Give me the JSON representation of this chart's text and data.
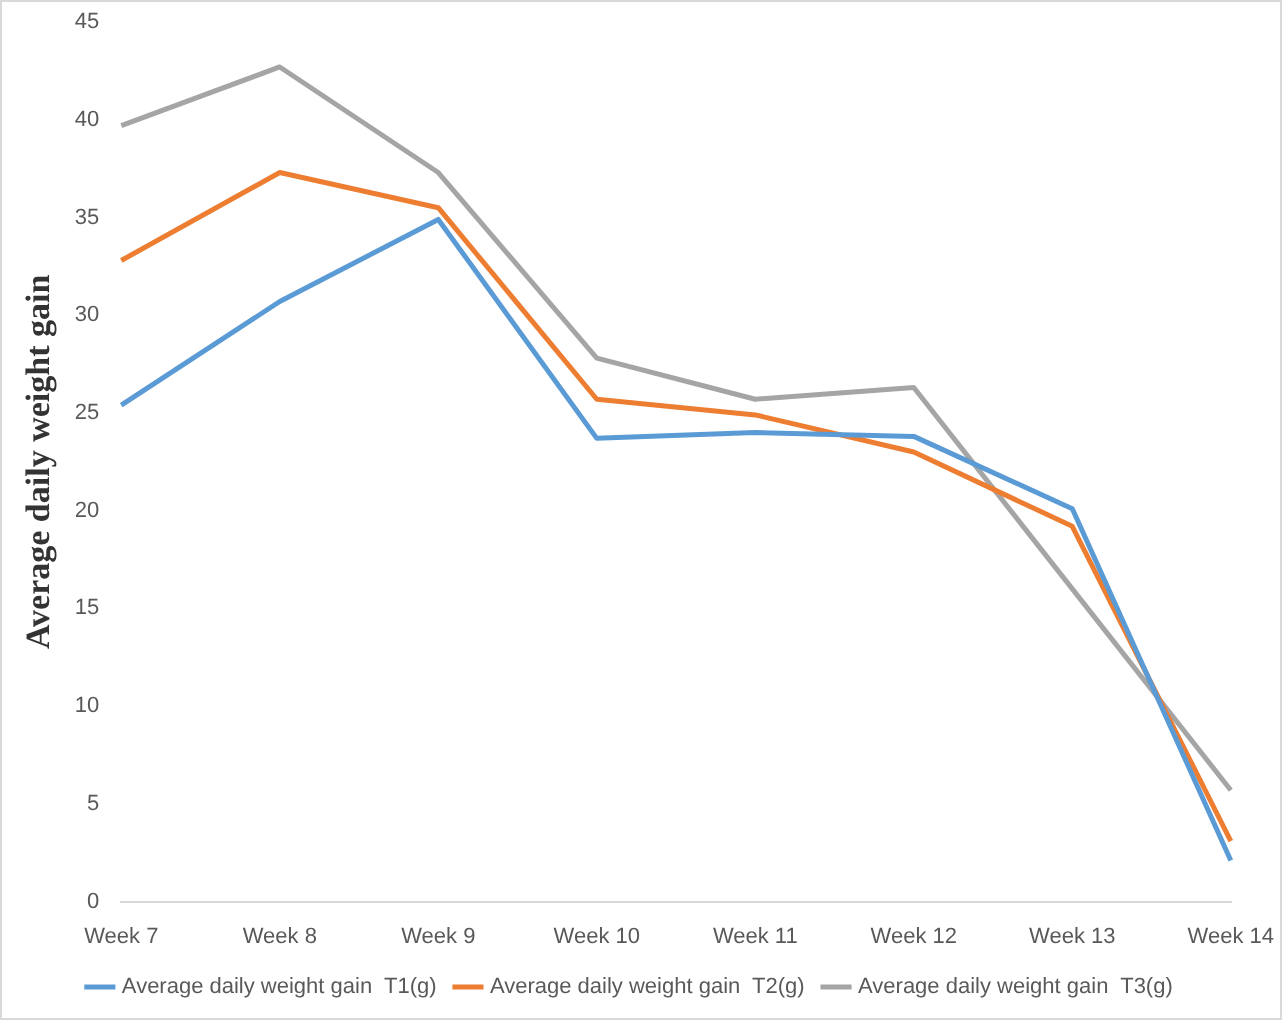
{
  "chart_data": {
    "type": "line",
    "ylabel": "Average daily weight gain",
    "categories": [
      "Week 7",
      "Week 8",
      "Week 9",
      "Week 10",
      "Week 11",
      "Week 12",
      "Week 13",
      "Week 14"
    ],
    "series": [
      {
        "name": "Average daily weight gain  T1(g)",
        "color": "#5b9bd5",
        "values": [
          25.4,
          30.7,
          34.9,
          23.7,
          24.0,
          23.8,
          20.1,
          2.1
        ]
      },
      {
        "name": "Average daily weight gain  T2(g)",
        "color": "#ed7d31",
        "values": [
          32.8,
          37.3,
          35.5,
          25.7,
          24.9,
          23.0,
          19.2,
          3.1
        ]
      },
      {
        "name": "Average daily weight gain  T3(g)",
        "color": "#a5a5a5",
        "values": [
          39.7,
          42.7,
          37.3,
          27.8,
          25.7,
          26.3,
          16.0,
          5.7
        ]
      }
    ],
    "ylim": [
      0,
      45
    ],
    "yticks": [
      0,
      5,
      10,
      15,
      20,
      25,
      30,
      35,
      40,
      45
    ],
    "grid": false,
    "legend": "bottom",
    "marker": "none",
    "line_style": "solid"
  }
}
